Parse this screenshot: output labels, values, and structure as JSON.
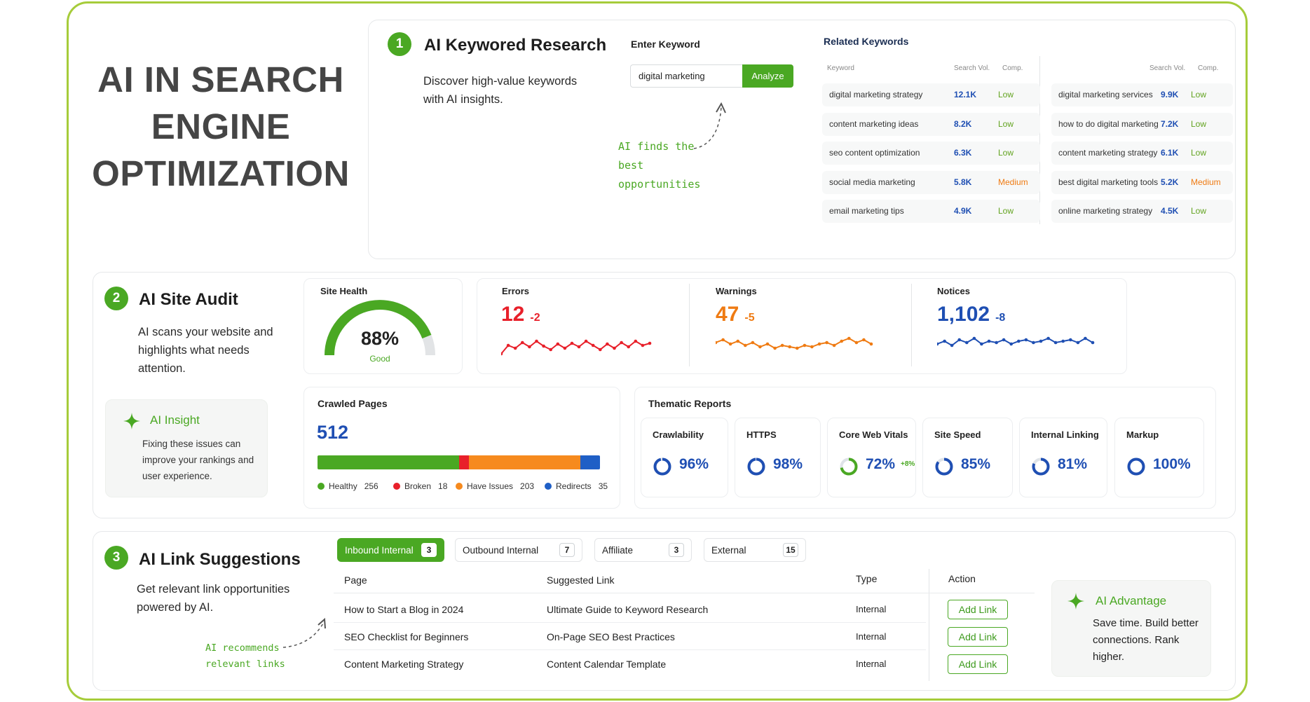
{
  "title": "AI IN SEARCH ENGINE OPTIMIZATION",
  "colors": {
    "accent": "#4aa823",
    "blue": "#1f4fb3",
    "red": "#e8202a",
    "orange": "#ef7b13",
    "border": "#a6cc3a"
  },
  "keyword_research": {
    "number": "1",
    "title": "AI Keywored Research",
    "description": "Discover high-value keywords with AI insights.",
    "enter_label": "Enter Keyword",
    "input_value": "digital marketing",
    "analyze_label": "Analyze",
    "annotation": "AI finds the best opportunities",
    "related_title": "Related Keywords",
    "headers": {
      "keyword": "Keyword",
      "volume": "Search Vol.",
      "comp": "Comp."
    },
    "left": [
      {
        "keyword": "digital marketing strategy",
        "volume": "12.1K",
        "comp": "Low"
      },
      {
        "keyword": "content marketing ideas",
        "volume": "8.2K",
        "comp": "Low"
      },
      {
        "keyword": "seo content optimization",
        "volume": "6.3K",
        "comp": "Low"
      },
      {
        "keyword": "social media marketing",
        "volume": "5.8K",
        "comp": "Medium"
      },
      {
        "keyword": "email marketing tips",
        "volume": "4.9K",
        "comp": "Low"
      }
    ],
    "right": [
      {
        "keyword": "digital marketing services",
        "volume": "9.9K",
        "comp": "Low"
      },
      {
        "keyword": "how to do digital marketing",
        "volume": "7.2K",
        "comp": "Low"
      },
      {
        "keyword": "content marketing strategy",
        "volume": "6.1K",
        "comp": "Low"
      },
      {
        "keyword": "best digital marketing tools",
        "volume": "5.2K",
        "comp": "Medium"
      },
      {
        "keyword": "online marketing strategy",
        "volume": "4.5K",
        "comp": "Low"
      }
    ]
  },
  "site_audit": {
    "number": "2",
    "title": "AI Site Audit",
    "description": "AI scans your website and highlights what needs attention.",
    "health_label": "Site Health",
    "health_value": "88%",
    "health_fraction": 0.88,
    "health_status": "Good",
    "errors": {
      "label": "Errors",
      "value": "12",
      "delta": "-2"
    },
    "warnings": {
      "label": "Warnings",
      "value": "47",
      "delta": "-5"
    },
    "notices": {
      "label": "Notices",
      "value": "1,102",
      "delta": "-8"
    },
    "insight_title": "AI Insight",
    "insight_text": "Fixing these issues can improve your rankings and user experience.",
    "crawled_label": "Crawled Pages",
    "crawled_value": "512",
    "crawl_breakdown": [
      {
        "name": "Healthy",
        "count": "256",
        "value": 256,
        "color": "#4aa823"
      },
      {
        "name": "Broken",
        "count": "18",
        "value": 18,
        "color": "#e8202a"
      },
      {
        "name": "Have Issues",
        "count": "203",
        "value": 203,
        "color": "#f68a1e"
      },
      {
        "name": "Redirects",
        "count": "35",
        "value": 35,
        "color": "#1f5fc6"
      }
    ],
    "thematic_title": "Thematic Reports",
    "thematic": [
      {
        "name": "Crawlability",
        "value": "96%",
        "fraction": 0.96,
        "extra": ""
      },
      {
        "name": "HTTPS",
        "value": "98%",
        "fraction": 0.98,
        "extra": ""
      },
      {
        "name": "Core Web Vitals",
        "value": "72%",
        "fraction": 0.72,
        "extra": "+8%"
      },
      {
        "name": "Site Speed",
        "value": "85%",
        "fraction": 0.85,
        "extra": ""
      },
      {
        "name": "Internal Linking",
        "value": "81%",
        "fraction": 0.81,
        "extra": ""
      },
      {
        "name": "Markup",
        "value": "100%",
        "fraction": 1.0,
        "extra": ""
      }
    ]
  },
  "link_suggestions": {
    "number": "3",
    "title": "AI Link Suggestions",
    "description": "Get relevant link opportunities powered by AI.",
    "annotation": "AI recommends relevant links",
    "tabs": [
      {
        "label": "Inbound Internal",
        "count": "3"
      },
      {
        "label": "Outbound Internal",
        "count": "7"
      },
      {
        "label": "Affiliate",
        "count": "3"
      },
      {
        "label": "External",
        "count": "15"
      }
    ],
    "headers": {
      "page": "Page",
      "link": "Suggested Link",
      "type": "Type",
      "action": "Action"
    },
    "rows": [
      {
        "page": "How to Start a Blog in 2024",
        "link": "Ultimate Guide to Keyword Research",
        "type": "Internal",
        "action": "Add Link"
      },
      {
        "page": "SEO Checklist for Beginners",
        "link": "On-Page SEO Best Practices",
        "type": "Internal",
        "action": "Add Link"
      },
      {
        "page": "Content Marketing Strategy",
        "link": "Content Calendar Template",
        "type": "Internal",
        "action": "Add Link"
      }
    ],
    "advantage_title": "AI Advantage",
    "advantage_text": "Save time. Build better connections. Rank higher."
  }
}
